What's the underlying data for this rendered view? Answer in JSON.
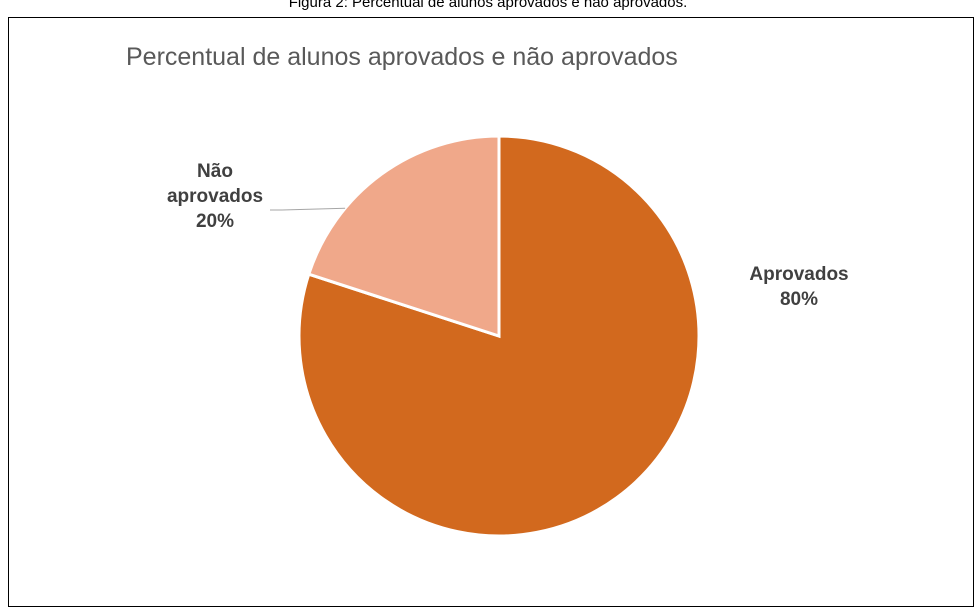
{
  "caption": "Figura 2: Percentual de alunos aprovados e não aprovados.",
  "colors": {
    "aprovados": "#D2691E",
    "nao_aprovados": "#F0A88A",
    "leader": "#A6A6A6",
    "title": "#595959",
    "label": "#404040"
  },
  "chart_data": {
    "type": "pie",
    "title": "Percentual de alunos aprovados e não aprovados",
    "categories": [
      "Aprovados",
      "Não aprovados"
    ],
    "values": [
      80,
      20
    ],
    "labels": [
      {
        "lines": [
          "Aprovados",
          "80%"
        ]
      },
      {
        "lines": [
          "Não",
          "aprovados",
          "20%"
        ]
      }
    ],
    "legend": "none"
  }
}
